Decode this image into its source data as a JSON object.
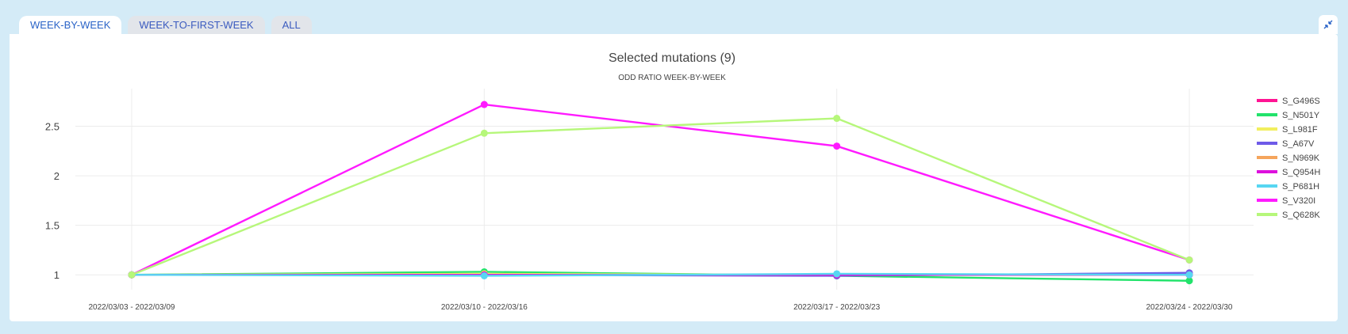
{
  "tabs": [
    {
      "label": "WEEK-BY-WEEK",
      "active": true
    },
    {
      "label": "WEEK-TO-FIRST-WEEK",
      "active": false
    },
    {
      "label": "ALL",
      "active": false
    }
  ],
  "collapse_icon": "collapse-arrows-icon",
  "chart_data": {
    "type": "line",
    "title": "Selected mutations (9)",
    "subtitle": "ODD RATIO WEEK-BY-WEEK",
    "xlabel": "",
    "ylabel": "",
    "categories": [
      "2022/03/03 - 2022/03/09",
      "2022/03/10 - 2022/03/16",
      "2022/03/17 - 2022/03/23",
      "2022/03/24 - 2022/03/30"
    ],
    "yticks": [
      "1",
      "1.5",
      "2",
      "2.5"
    ],
    "ylim": [
      0.85,
      2.88
    ],
    "grid": true,
    "legend_position": "right",
    "series": [
      {
        "name": "S_G496S",
        "color": "#ff1493",
        "values": [
          1,
          1.0,
          1.0,
          1.0
        ]
      },
      {
        "name": "S_N501Y",
        "color": "#22e36b",
        "values": [
          1,
          1.03,
          0.99,
          0.94
        ]
      },
      {
        "name": "S_L981F",
        "color": "#f2ef5e",
        "values": [
          1,
          1.01,
          1.0,
          1.0
        ]
      },
      {
        "name": "S_A67V",
        "color": "#6e5ae8",
        "values": [
          1,
          1.0,
          0.99,
          1.02
        ]
      },
      {
        "name": "S_N969K",
        "color": "#f5a55c",
        "values": [
          1,
          1.0,
          1.0,
          1.0
        ]
      },
      {
        "name": "S_Q954H",
        "color": "#dd10dd",
        "values": [
          1,
          1.0,
          1.0,
          1.0
        ]
      },
      {
        "name": "S_P681H",
        "color": "#57d6f2",
        "values": [
          1,
          0.99,
          1.01,
          1.0
        ]
      },
      {
        "name": "S_V320I",
        "color": "#ff1aff",
        "values": [
          1,
          2.72,
          2.3,
          1.15
        ]
      },
      {
        "name": "S_Q628K",
        "color": "#b6f77a",
        "values": [
          1,
          2.43,
          2.58,
          1.15
        ]
      }
    ]
  }
}
